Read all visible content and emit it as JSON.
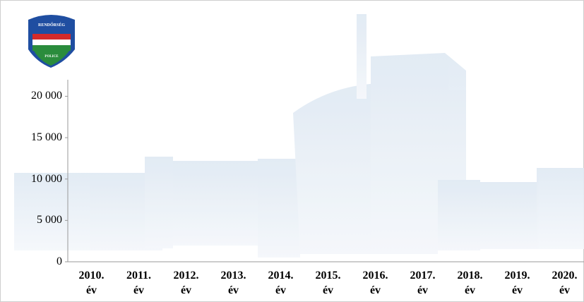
{
  "chart_data": {
    "type": "bar",
    "categories": [
      "2010. év",
      "2011. év",
      "2012. év",
      "2013. év",
      "2014. év",
      "2015. év",
      "2016. év",
      "2017. év",
      "2018. év",
      "2019. év",
      "2020. év"
    ],
    "ylim": [
      0,
      22000
    ],
    "yticks": [
      0,
      {
        "value": 5000,
        "label": "5 000"
      },
      {
        "value": 10000,
        "label": "10 000"
      },
      {
        "value": 15000,
        "label": "15 000"
      },
      {
        "value": 20000,
        "label": "20 000"
      }
    ],
    "grid": false,
    "logo": {
      "top": "RENDŐRSÉG",
      "bottom": "POLICE"
    }
  }
}
